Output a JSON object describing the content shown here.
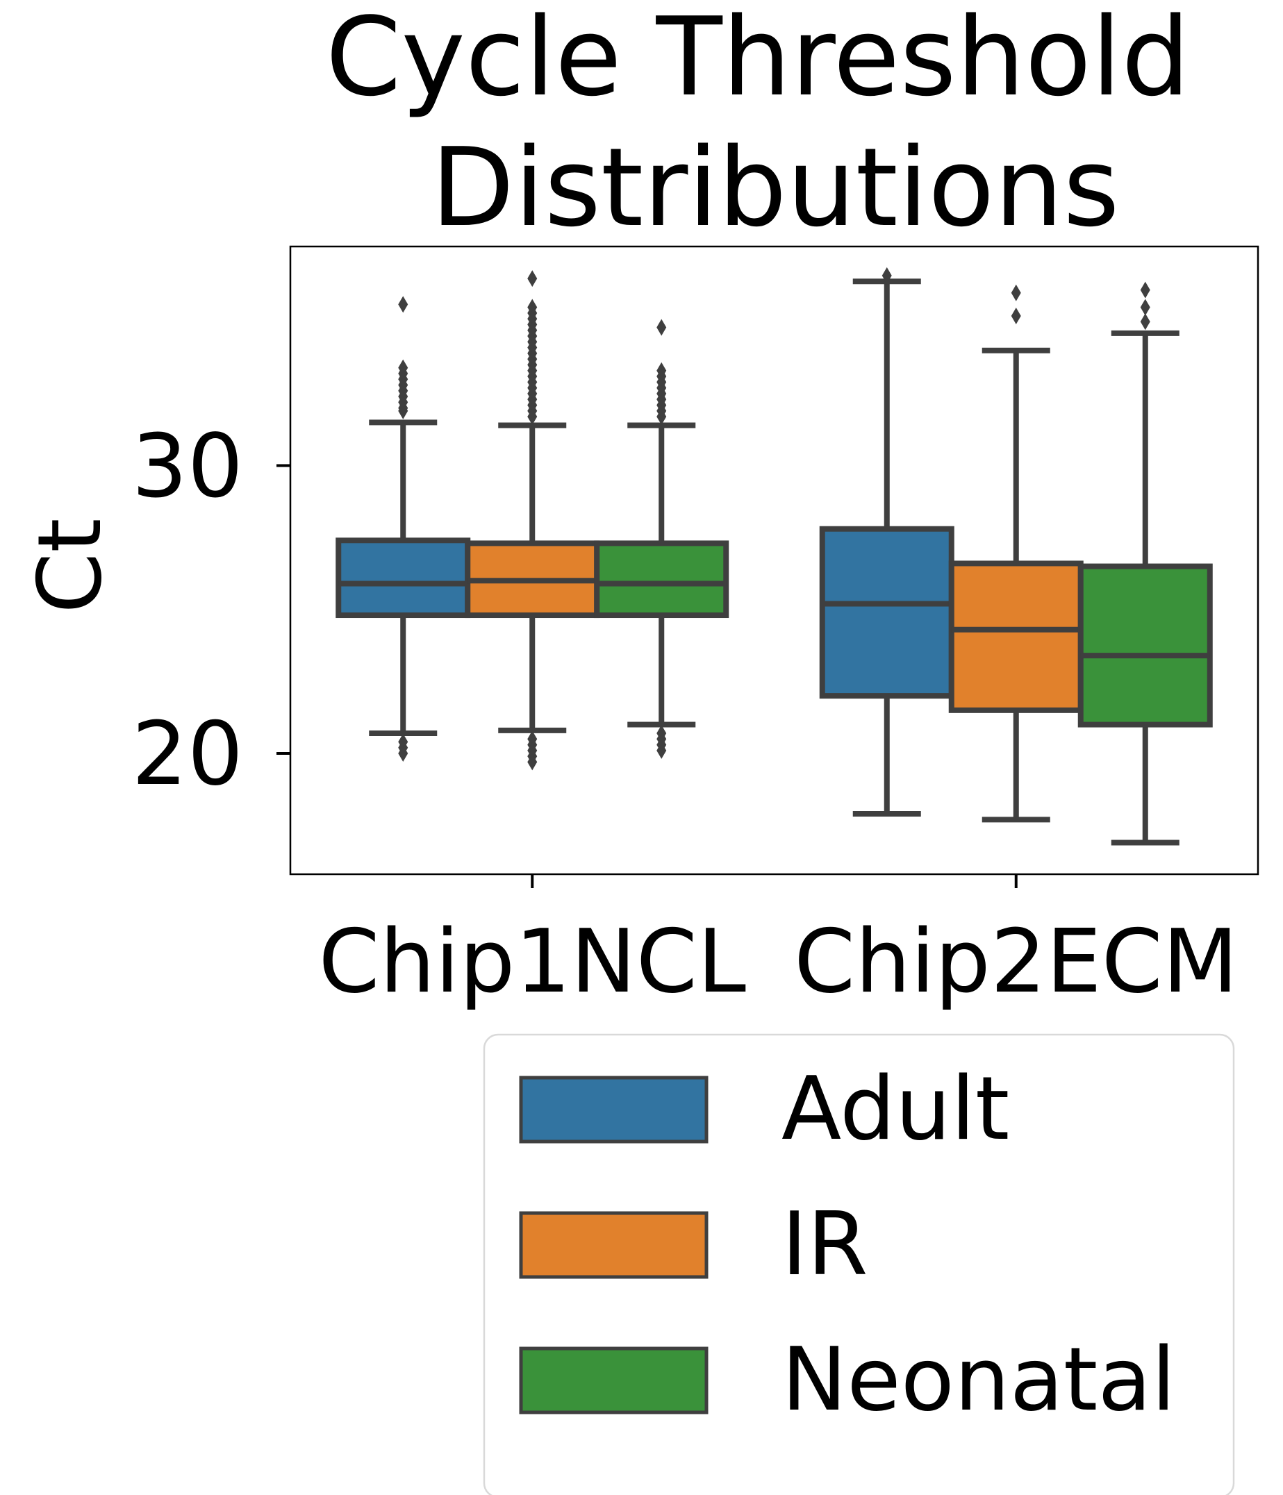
{
  "chart_data": {
    "type": "box",
    "title_lines": [
      "Cycle Threshold",
      "Distributions"
    ],
    "xlabel": "",
    "ylabel": "Ct",
    "categories": [
      "Chip1NCL",
      "Chip2ECM"
    ],
    "yticks": [
      20,
      30
    ],
    "ylim": [
      15.8,
      37.6
    ],
    "grid": false,
    "legend_placement": "below-right",
    "series": [
      {
        "name": "Adult",
        "color": "#3274a1",
        "boxes": [
          {
            "whisker_low": 20.7,
            "q1": 24.8,
            "median": 25.9,
            "q3": 27.4,
            "whisker_high": 31.5,
            "outliers": [
              33.4,
              33.2,
              33.0,
              32.8,
              32.6,
              32.4,
              32.2,
              32.0,
              31.9,
              35.6,
              20.4,
              20.2,
              20.0
            ]
          },
          {
            "whisker_low": 17.9,
            "q1": 22.0,
            "median": 25.2,
            "q3": 27.8,
            "whisker_high": 36.4,
            "outliers": [
              36.6
            ]
          }
        ]
      },
      {
        "name": "IR",
        "color": "#e1812c",
        "boxes": [
          {
            "whisker_low": 20.8,
            "q1": 24.8,
            "median": 26.0,
            "q3": 27.3,
            "whisker_high": 31.4,
            "outliers": [
              36.5,
              35.5,
              35.3,
              35.1,
              34.9,
              34.7,
              34.5,
              34.3,
              34.1,
              33.9,
              33.7,
              33.5,
              33.3,
              33.1,
              32.9,
              32.7,
              32.5,
              32.3,
              32.1,
              31.9,
              31.7,
              20.5,
              20.3,
              20.1,
              19.9,
              19.7
            ]
          },
          {
            "whisker_low": 17.7,
            "q1": 21.5,
            "median": 24.3,
            "q3": 26.6,
            "whisker_high": 34.0,
            "outliers": [
              35.2,
              36.0
            ]
          }
        ]
      },
      {
        "name": "Neonatal",
        "color": "#3a923a",
        "boxes": [
          {
            "whisker_low": 21.0,
            "q1": 24.8,
            "median": 25.9,
            "q3": 27.3,
            "whisker_high": 31.4,
            "outliers": [
              34.8,
              33.3,
              33.1,
              32.9,
              32.7,
              32.5,
              32.3,
              32.1,
              31.9,
              31.7,
              20.7,
              20.5,
              20.3,
              20.1
            ]
          },
          {
            "whisker_low": 16.9,
            "q1": 21.0,
            "median": 23.4,
            "q3": 26.5,
            "whisker_high": 34.6,
            "outliers": [
              35.0,
              35.5,
              36.1
            ]
          }
        ]
      }
    ]
  }
}
